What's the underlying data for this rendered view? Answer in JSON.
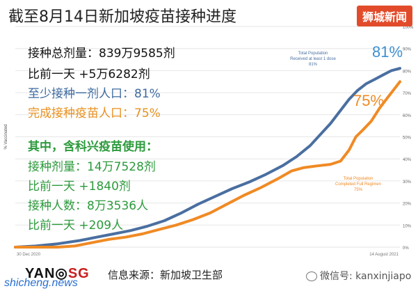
{
  "title": "截至8月14日新加坡疫苗接种进度",
  "brand": "狮城新闻",
  "stats": {
    "total_doses": "接种总剂量：839万9585剂",
    "total_doses_change": "比前一天 +5万6282剂",
    "at_least_one": "至少接种一剂人口：81%",
    "fully_vaccinated": "完成接种疫苗人口：75%",
    "sinovac_heading": "其中，含科兴疫苗使用：",
    "sinovac_doses": "接种剂量：14万7528剂",
    "sinovac_doses_change": "比前一天 +1840剂",
    "sinovac_people": "接种人数：8万3536人",
    "sinovac_people_change": "比前一天 +209人"
  },
  "footer": {
    "logo_yan": "YAN",
    "logo_sg": "SG",
    "site": "shicheng.news",
    "source": "信息来源：新加坡卫生部",
    "wechat": "微信号: kanxinjiapo"
  },
  "colors": {
    "blue": "#4a6fa0",
    "orange": "#f08a24",
    "green": "#2c9a3c",
    "brand": "#e24b2a"
  },
  "chart_data": {
    "type": "line",
    "ylabel": "% Vaccinated",
    "ylim": [
      0,
      100
    ],
    "y_ticks": [
      "0%",
      "10%",
      "20%",
      "30%",
      "40%",
      "50%",
      "60%",
      "70%",
      "80%",
      "90%",
      "100%"
    ],
    "x_labels": [
      "30 Dec 2020",
      "14 August 2021"
    ],
    "x_range_days": [
      0,
      227
    ],
    "series": [
      {
        "name": "Total Population Received at least 1 dose",
        "label_line1": "Total Population",
        "label_line2": "Received at least 1 dose",
        "label_line3": "81%",
        "end_label": "81%",
        "color": "#4a6fa0",
        "points": [
          [
            0,
            0
          ],
          [
            12,
            0.5
          ],
          [
            25,
            1.5
          ],
          [
            38,
            3
          ],
          [
            48,
            4.5
          ],
          [
            58,
            6
          ],
          [
            68,
            7.5
          ],
          [
            78,
            9.5
          ],
          [
            88,
            12
          ],
          [
            98,
            15.5
          ],
          [
            108,
            19.5
          ],
          [
            118,
            23
          ],
          [
            128,
            26.5
          ],
          [
            138,
            29.5
          ],
          [
            148,
            33
          ],
          [
            158,
            37
          ],
          [
            166,
            41
          ],
          [
            174,
            46
          ],
          [
            180,
            51
          ],
          [
            186,
            56
          ],
          [
            192,
            62
          ],
          [
            197,
            67
          ],
          [
            202,
            71
          ],
          [
            207,
            74
          ],
          [
            212,
            76
          ],
          [
            217,
            78
          ],
          [
            222,
            80
          ],
          [
            227,
            81
          ]
        ]
      },
      {
        "name": "Total Population Completed Full Regimen",
        "label_line1": "Total Population",
        "label_line2": "Completed Full Regimen",
        "label_line3": "75%",
        "end_label": "75%",
        "color": "#f08a24",
        "points": [
          [
            0,
            0
          ],
          [
            25,
            0
          ],
          [
            35,
            0.5
          ],
          [
            45,
            2
          ],
          [
            55,
            3.5
          ],
          [
            65,
            4.5
          ],
          [
            75,
            6
          ],
          [
            85,
            8
          ],
          [
            95,
            10
          ],
          [
            105,
            12.5
          ],
          [
            115,
            15.5
          ],
          [
            125,
            19.5
          ],
          [
            135,
            23.5
          ],
          [
            145,
            27
          ],
          [
            155,
            31
          ],
          [
            163,
            34.5
          ],
          [
            170,
            36
          ],
          [
            178,
            36.8
          ],
          [
            186,
            37.5
          ],
          [
            192,
            39
          ],
          [
            197,
            44
          ],
          [
            201,
            50
          ],
          [
            205,
            53
          ],
          [
            210,
            57
          ],
          [
            215,
            63
          ],
          [
            220,
            68
          ],
          [
            224,
            72
          ],
          [
            227,
            75
          ]
        ]
      }
    ]
  }
}
